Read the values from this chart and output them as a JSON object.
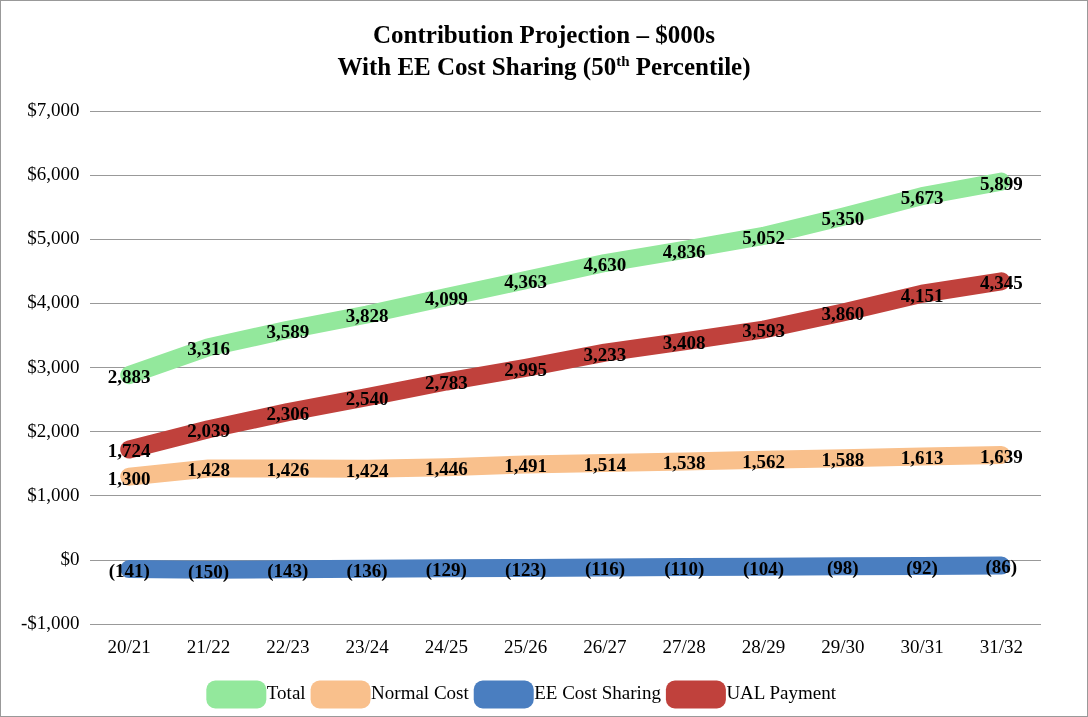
{
  "chart_data": {
    "type": "line",
    "title": "Contribution Projection – $000s\nWith EE Cost Sharing (50$^{th}$ Percentile)",
    "categories": [
      "20/21",
      "21/22",
      "22/23",
      "23/24",
      "24/25",
      "25/26",
      "26/27",
      "27/28",
      "28/29",
      "29/30",
      "30/31",
      "31/32"
    ],
    "series": [
      {
        "name": "Total",
        "color": "#93e89c",
        "values": [
          2883,
          3316,
          3589,
          3828,
          4099,
          4363,
          4630,
          4836,
          5052,
          5350,
          5673,
          5899
        ],
        "value_labels": [
          "2,883",
          "3,316",
          "3,589",
          "3,828",
          "4,099",
          "4,363",
          "4,630",
          "4,836",
          "5,052",
          "5,350",
          "5,673",
          "5,899"
        ]
      },
      {
        "name": "Normal Cost",
        "color": "#f9c08c",
        "values": [
          1300,
          1428,
          1426,
          1424,
          1446,
          1491,
          1514,
          1538,
          1562,
          1588,
          1613,
          1639
        ],
        "value_labels": [
          "1,300",
          "1,428",
          "1,426",
          "1,424",
          "1,446",
          "1,491",
          "1,514",
          "1,538",
          "1,562",
          "1,588",
          "1,613",
          "1,639"
        ]
      },
      {
        "name": "EE Cost Sharing",
        "color": "#4a7ec0",
        "values": [
          -141,
          -150,
          -143,
          -136,
          -129,
          -123,
          -116,
          -110,
          -104,
          -98,
          -92,
          -86
        ],
        "value_labels": [
          "(141)",
          "(150)",
          "(143)",
          "(136)",
          "(129)",
          "(123)",
          "(116)",
          "(110)",
          "(104)",
          "(98)",
          "(92)",
          "(86)"
        ]
      },
      {
        "name": "UAL Payment",
        "color": "#c0413c",
        "values": [
          1724,
          2039,
          2306,
          2540,
          2783,
          2995,
          3233,
          3408,
          3593,
          3860,
          4151,
          4345
        ],
        "value_labels": [
          "1,724",
          "2,039",
          "2,306",
          "2,540",
          "2,783",
          "2,995",
          "3,233",
          "3,408",
          "3,593",
          "3,860",
          "4,151",
          "4,345"
        ]
      }
    ],
    "ylim": [
      -1000,
      7000
    ],
    "yticks": [
      {
        "value": -1000,
        "label": "-$1,000"
      },
      {
        "value": 0,
        "label": "$0"
      },
      {
        "value": 1000,
        "label": "$1,000"
      },
      {
        "value": 2000,
        "label": "$2,000"
      },
      {
        "value": 3000,
        "label": "$3,000"
      },
      {
        "value": 4000,
        "label": "$4,000"
      },
      {
        "value": 5000,
        "label": "$5,000"
      },
      {
        "value": 6000,
        "label": "$6,000"
      },
      {
        "value": 7000,
        "label": "$7,000"
      }
    ],
    "grid": "y",
    "legend": "bottom",
    "marker": "none",
    "line_style": "solid"
  }
}
